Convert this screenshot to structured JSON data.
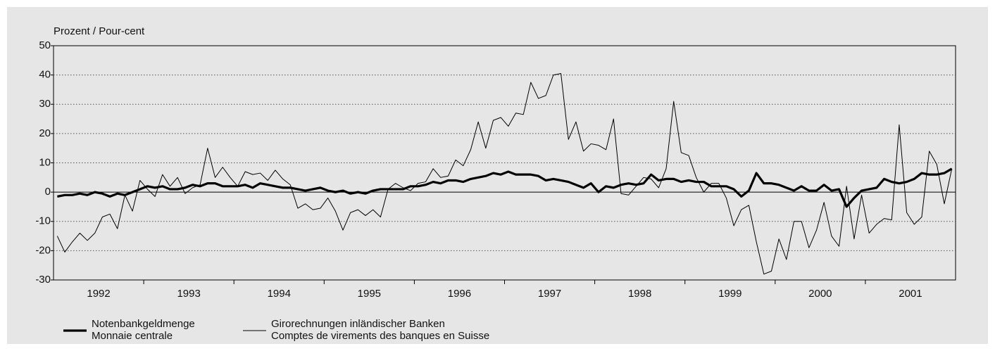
{
  "chart_data": {
    "type": "line",
    "y_label": "Prozent / Pour-cent",
    "categories": [
      null,
      null,
      null,
      null,
      null,
      null,
      "1992",
      null,
      null,
      null,
      null,
      null,
      null,
      null,
      null,
      null,
      null,
      null,
      "1993",
      null,
      null,
      null,
      null,
      null,
      null,
      null,
      null,
      null,
      null,
      null,
      "1994",
      null,
      null,
      null,
      null,
      null,
      null,
      null,
      null,
      null,
      null,
      null,
      "1995",
      null,
      null,
      null,
      null,
      null,
      null,
      null,
      null,
      null,
      null,
      null,
      "1996",
      null,
      null,
      null,
      null,
      null,
      null,
      null,
      null,
      null,
      null,
      null,
      "1997",
      null,
      null,
      null,
      null,
      null,
      null,
      null,
      null,
      null,
      null,
      null,
      "1998",
      null,
      null,
      null,
      null,
      null,
      null,
      null,
      null,
      null,
      null,
      null,
      "1999",
      null,
      null,
      null,
      null,
      null,
      null,
      null,
      null,
      null,
      null,
      null,
      "2000",
      null,
      null,
      null,
      null,
      null,
      null,
      null,
      null,
      null,
      null,
      null,
      "2001",
      null,
      null,
      null,
      null,
      null
    ],
    "series": [
      {
        "name": [
          "Notenbankgeldmenge",
          "Monnaie centrale"
        ],
        "color": "#000000",
        "width": 3.2,
        "values": [
          -1.5,
          -1,
          -1,
          -0.5,
          -1,
          0,
          -0.5,
          -1.5,
          -0.5,
          -1,
          0,
          1,
          2,
          1.5,
          2,
          1,
          1,
          1.5,
          2.5,
          2,
          3,
          3,
          2,
          2,
          2,
          2.5,
          1.5,
          3,
          2.5,
          2,
          1.5,
          1.5,
          1,
          0.5,
          1,
          1.5,
          0.5,
          0,
          0.5,
          -0.5,
          0,
          -0.5,
          0.5,
          1,
          1,
          1,
          1,
          2,
          2,
          2.5,
          3.5,
          3,
          4,
          4,
          3.5,
          4.5,
          5,
          5.5,
          6.5,
          6,
          7,
          6,
          6,
          6,
          5.5,
          4,
          4.5,
          4,
          3.5,
          2.5,
          1.5,
          3,
          0,
          2,
          1.5,
          2.5,
          3,
          2.5,
          3,
          6,
          4,
          4.5,
          4.5,
          3.5,
          4,
          3.5,
          3.5,
          2,
          2,
          2,
          1,
          -1.5,
          0.5,
          6.5,
          3,
          3,
          2.5,
          1.5,
          0.5,
          2,
          0.5,
          0.5,
          2.5,
          0.5,
          1,
          -5,
          -2,
          0.5,
          1,
          1.5,
          4.5,
          3.5,
          3,
          3.5,
          4.5,
          6.5,
          6,
          6,
          6.5,
          8
        ]
      },
      {
        "name": [
          "Girorechnungen inländischer Banken",
          "Comptes de virements des banques en Suisse"
        ],
        "color": "#000000",
        "width": 1,
        "values": [
          -15,
          -20.5,
          -17,
          -14,
          -16.5,
          -14,
          -8.5,
          -7.5,
          -12.5,
          -1,
          -6.5,
          4,
          1,
          -1.5,
          6,
          2,
          5,
          -0.5,
          1.5,
          2.5,
          15,
          5,
          8.5,
          5,
          2,
          7,
          6,
          6.5,
          4,
          7.5,
          4.5,
          2.5,
          -5.5,
          -4,
          -6,
          -5.5,
          -2,
          -6.5,
          -13,
          -7,
          -6,
          -8,
          -6,
          -8.5,
          1,
          3,
          1.5,
          0.5,
          3,
          3.5,
          8,
          5,
          5.5,
          11,
          9,
          14.5,
          24,
          15,
          24.5,
          25.5,
          22.5,
          27,
          26.5,
          37.5,
          32,
          33,
          40,
          40.5,
          18,
          24,
          14,
          16.5,
          16,
          14.5,
          25,
          -0.5,
          -1,
          2,
          5,
          4.5,
          1.5,
          8,
          31,
          13.5,
          12.5,
          5,
          0,
          3,
          3,
          -2,
          -11.5,
          -6,
          -4.5,
          -17,
          -28,
          -27,
          -16,
          -23,
          -10,
          -10,
          -19,
          -13,
          -3.5,
          -15,
          -18.5,
          2,
          -16,
          -1,
          -14,
          -11,
          -9,
          -9.5,
          23,
          -7,
          -11,
          -8.5,
          14,
          9.5,
          -4,
          8
        ]
      }
    ],
    "ylim": [
      -30,
      50
    ],
    "yticks": [
      -30,
      -20,
      -10,
      0,
      10,
      20,
      30,
      40,
      50
    ],
    "grid": true
  }
}
